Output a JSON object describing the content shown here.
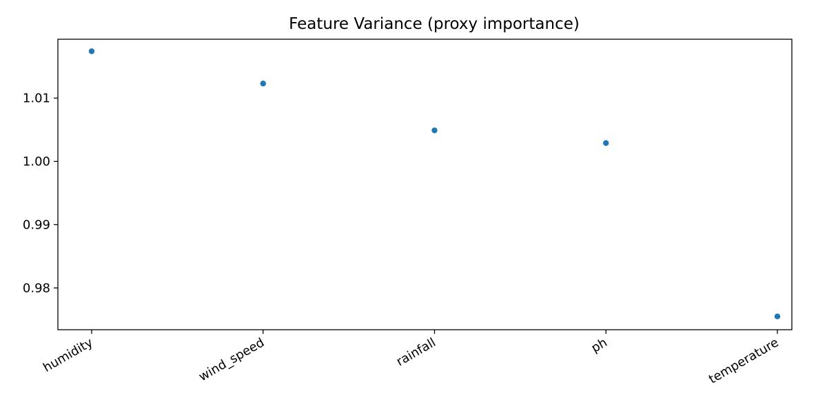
{
  "chart_data": {
    "type": "scatter",
    "title": "Feature Variance (proxy importance)",
    "xlabel": "",
    "ylabel": "",
    "categories": [
      "humidity",
      "wind_speed",
      "rainfall",
      "ph",
      "temperature"
    ],
    "values": [
      1.0174,
      1.0123,
      1.0049,
      1.0029,
      0.9755
    ],
    "ylim": [
      0.9734,
      1.0193
    ],
    "yticks": [
      0.98,
      0.99,
      1.0,
      1.01
    ],
    "ytick_labels": [
      "0.98",
      "0.99",
      "1.00",
      "1.01"
    ],
    "grid": false,
    "legend": "none",
    "point_color": "#1f77b4"
  }
}
